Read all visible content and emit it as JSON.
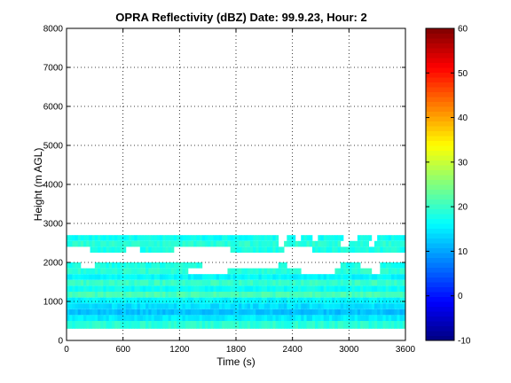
{
  "chart_data": {
    "type": "heatmap",
    "title": "OPRA Reflectivity (dBZ)  Date: 99.9.23, Hour: 2",
    "xlabel": "Time (s)",
    "ylabel": "Height (m AGL)",
    "xlim": [
      0,
      3600
    ],
    "ylim": [
      0,
      8000
    ],
    "x_ticks": [
      "0",
      "600",
      "1200",
      "1800",
      "2400",
      "3000",
      "3600"
    ],
    "y_ticks": [
      "0",
      "1000",
      "2000",
      "3000",
      "4000",
      "5000",
      "6000",
      "7000",
      "8000"
    ],
    "grid": true,
    "colorbar": {
      "colormap": "jet",
      "range": [
        -10,
        60
      ],
      "ticks": [
        "-10",
        "0",
        "10",
        "20",
        "30",
        "40",
        "50",
        "60"
      ]
    },
    "layers": [
      {
        "name": "upper layer",
        "height_range_m": [
          2250,
          2700
        ],
        "x_range_s": [
          0,
          3600
        ],
        "typical_dbz": [
          17,
          20
        ]
      },
      {
        "name": "lower layer",
        "height_range_m": [
          300,
          2000
        ],
        "x_range_s": [
          0,
          3600
        ],
        "typical_dbz": [
          12,
          21
        ]
      }
    ],
    "rows": [
      {
        "y0": 2550,
        "y1": 2700,
        "dbz": 17,
        "x_start": 0,
        "x_end": 3600,
        "gaps": [
          [
            2250,
            2330
          ],
          [
            2430,
            2500
          ],
          [
            2600,
            2680
          ],
          [
            2930,
            3080
          ],
          [
            3240,
            3300
          ]
        ]
      },
      {
        "y0": 2400,
        "y1": 2550,
        "dbz": 19,
        "x_start": 0,
        "x_end": 3600,
        "gaps": [
          [
            2250,
            2300
          ],
          [
            2920,
            2990
          ],
          [
            3200,
            3260
          ]
        ]
      },
      {
        "y0": 2250,
        "y1": 2400,
        "dbz": 18,
        "x_start": 250,
        "x_end": 3600,
        "gaps": [
          [
            620,
            780
          ],
          [
            1150,
            1750
          ],
          [
            2300,
            2600
          ]
        ]
      },
      {
        "y0": 1850,
        "y1": 2000,
        "dbz": 18,
        "x_start": 0,
        "x_end": 3600,
        "gaps": [
          [
            150,
            300
          ],
          [
            1450,
            2250
          ],
          [
            2350,
            2900
          ],
          [
            3130,
            3330
          ]
        ]
      },
      {
        "y0": 1700,
        "y1": 1850,
        "dbz": 19,
        "x_start": 0,
        "x_end": 3600,
        "gaps": [
          [
            1300,
            1700
          ],
          [
            2500,
            2850
          ],
          [
            3250,
            3330
          ]
        ]
      },
      {
        "y0": 1550,
        "y1": 1700,
        "dbz": 16,
        "x_start": 0,
        "x_end": 3600,
        "gaps": []
      },
      {
        "y0": 1400,
        "y1": 1550,
        "dbz": 20,
        "x_start": 0,
        "x_end": 3600,
        "gaps": []
      },
      {
        "y0": 1250,
        "y1": 1400,
        "dbz": 17,
        "x_start": 0,
        "x_end": 3600,
        "gaps": []
      },
      {
        "y0": 1100,
        "y1": 1250,
        "dbz": 21,
        "x_start": 0,
        "x_end": 3600,
        "gaps": []
      },
      {
        "y0": 950,
        "y1": 1100,
        "dbz": 16,
        "x_start": 0,
        "x_end": 3600,
        "gaps": []
      },
      {
        "y0": 800,
        "y1": 950,
        "dbz": 14,
        "x_start": 0,
        "x_end": 3600,
        "gaps": []
      },
      {
        "y0": 650,
        "y1": 800,
        "dbz": 12,
        "x_start": 0,
        "x_end": 3600,
        "gaps": []
      },
      {
        "y0": 500,
        "y1": 650,
        "dbz": 15,
        "x_start": 0,
        "x_end": 3600,
        "gaps": []
      },
      {
        "y0": 300,
        "y1": 500,
        "dbz": 19,
        "x_start": 0,
        "x_end": 3600,
        "gaps": []
      }
    ]
  }
}
